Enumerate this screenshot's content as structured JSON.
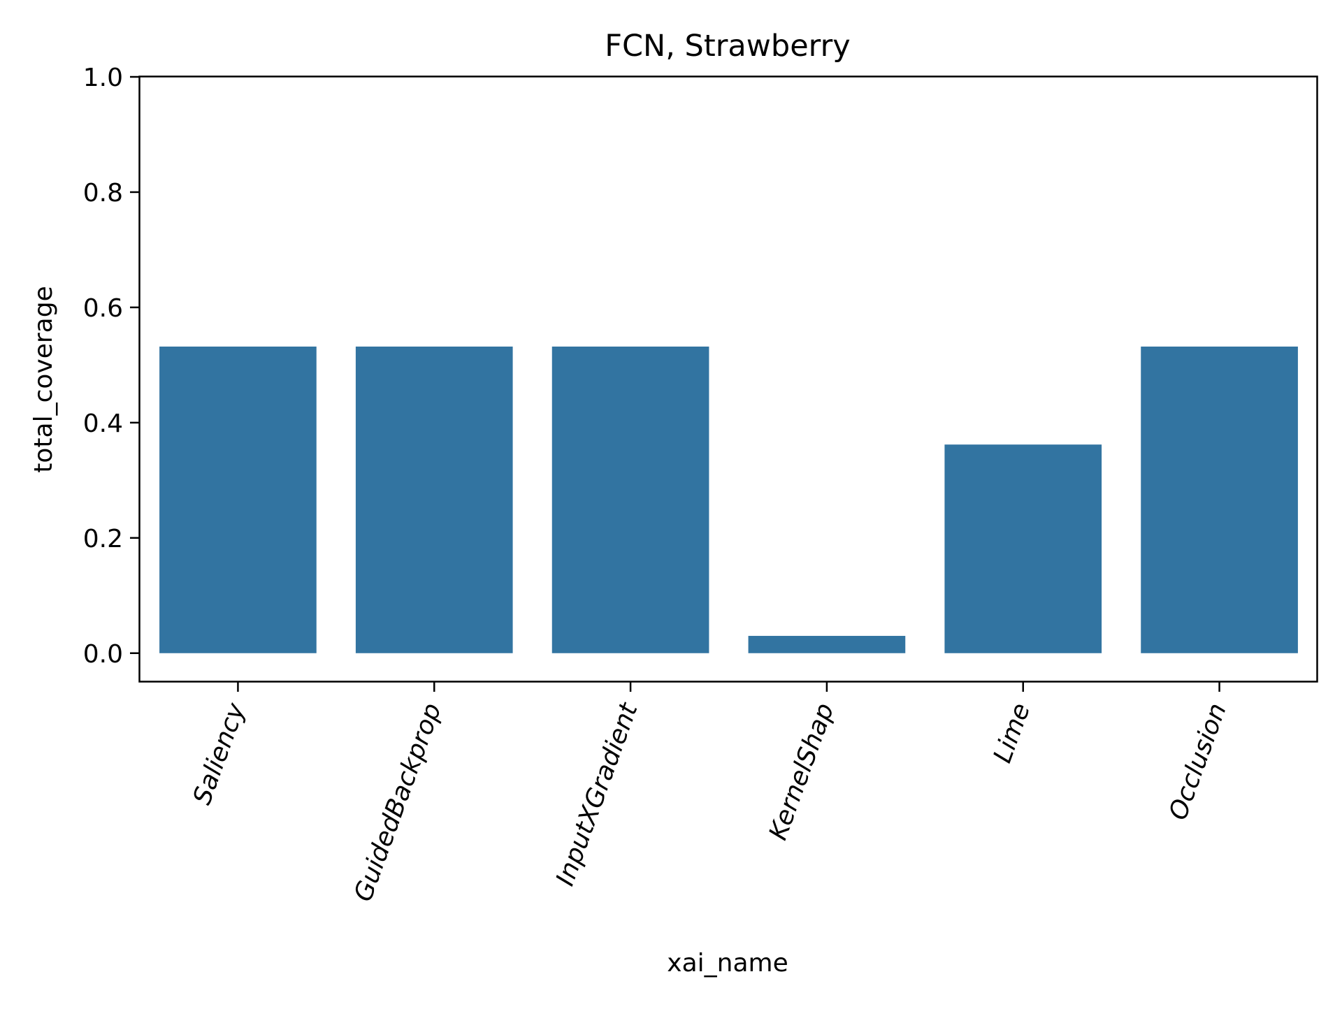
{
  "chart_data": {
    "type": "bar",
    "title": "FCN, Strawberry",
    "xlabel": "xai_name",
    "ylabel": "total_coverage",
    "categories": [
      "Saliency",
      "GuidedBackprop",
      "InputXGradient",
      "KernelShap",
      "Lime",
      "Occlusion"
    ],
    "values": [
      0.532,
      0.532,
      0.532,
      0.03,
      0.362,
      0.532
    ],
    "ylim": [
      -0.05,
      1.0
    ],
    "yticks": [
      0.0,
      0.2,
      0.4,
      0.6,
      0.8,
      1.0
    ],
    "ytick_labels": [
      "0.0",
      "0.2",
      "0.4",
      "0.6",
      "0.8",
      "1.0"
    ],
    "bar_color": "#3274a1",
    "grid": false,
    "legend": "none"
  }
}
